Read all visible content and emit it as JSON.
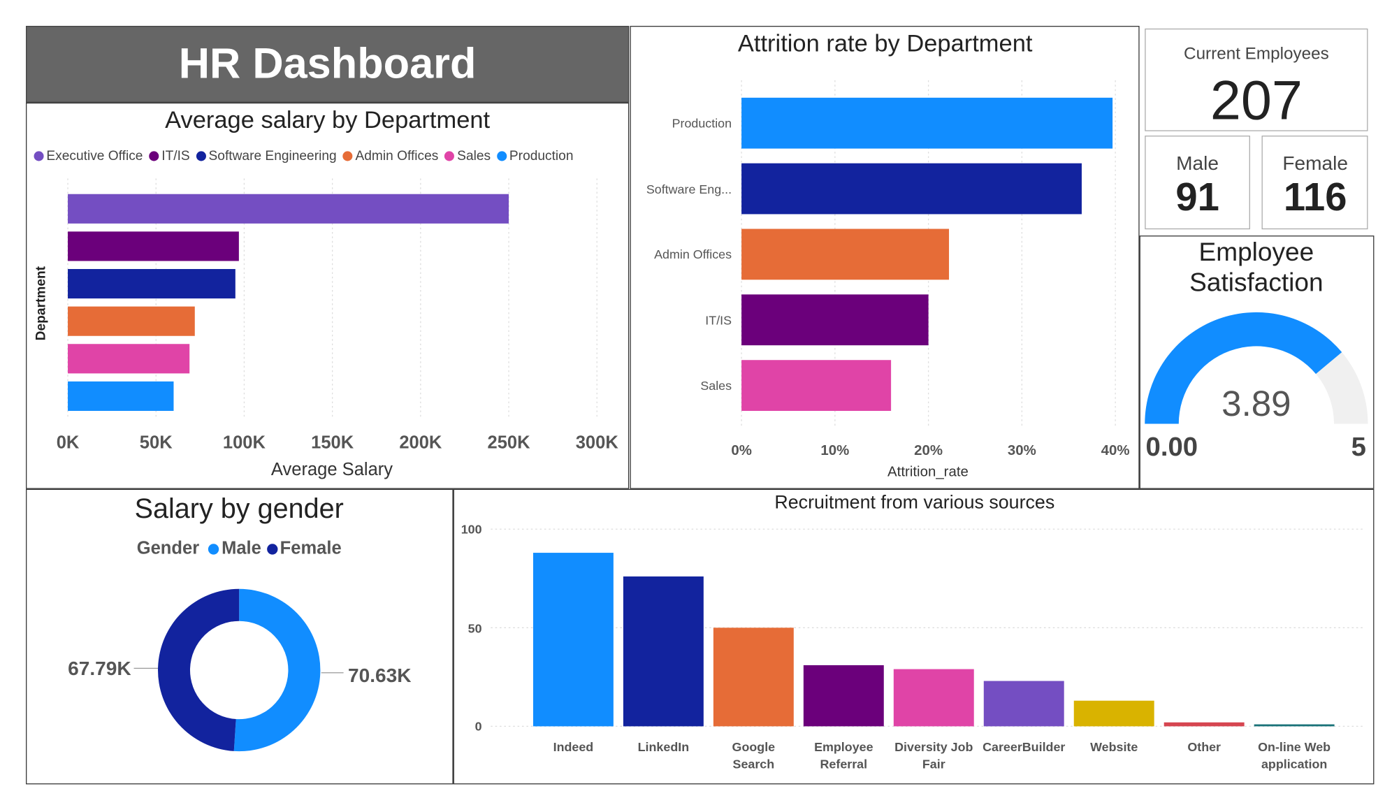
{
  "header": {
    "title": "HR Dashboard"
  },
  "cards": [
    {
      "label": "Current Employees",
      "value": 207
    },
    {
      "label": "Male",
      "value": 91
    },
    {
      "label": "Female",
      "value": 116
    }
  ],
  "chart_data": [
    {
      "type": "bar",
      "orientation": "horizontal",
      "title": "Average salary by Department",
      "x_label": "Average Salary",
      "y_label": "Department",
      "categories": [
        "Executive Office",
        "IT/IS",
        "Software Engineering",
        "Admin Offices",
        "Sales",
        "Production"
      ],
      "values": [
        250000,
        97000,
        95000,
        72000,
        69000,
        60000
      ],
      "colors": [
        "#744EC2",
        "#6B007B",
        "#12239E",
        "#E66C37",
        "#E044A7",
        "#118DFF"
      ],
      "legend": true,
      "xlim": [
        0,
        300000
      ],
      "xticks": [
        {
          "value": 0,
          "label": "0K"
        },
        {
          "value": 50000,
          "label": "50K"
        },
        {
          "value": 100000,
          "label": "100K"
        },
        {
          "value": 150000,
          "label": "150K"
        },
        {
          "value": 200000,
          "label": "200K"
        },
        {
          "value": 250000,
          "label": "250K"
        },
        {
          "value": 300000,
          "label": "300K"
        }
      ],
      "grid": true
    },
    {
      "type": "bar",
      "orientation": "horizontal",
      "title": "Attrition rate by Department",
      "x_label": "Attrition_rate",
      "categories": [
        "Production",
        "Software Eng...",
        "Admin Offices",
        "IT/IS",
        "Sales"
      ],
      "values": [
        39.7,
        36.4,
        22.2,
        20.0,
        16.0
      ],
      "colors": [
        "#118DFF",
        "#12239E",
        "#E66C37",
        "#6B007B",
        "#E044A7"
      ],
      "legend": false,
      "xlim": [
        0,
        40
      ],
      "xticks": [
        {
          "value": 0,
          "label": "0%"
        },
        {
          "value": 10,
          "label": "10%"
        },
        {
          "value": 20,
          "label": "20%"
        },
        {
          "value": 30,
          "label": "30%"
        },
        {
          "value": 40,
          "label": "40%"
        }
      ],
      "grid": true
    },
    {
      "type": "gauge",
      "title": "Employee Satisfaction",
      "value": 3.89,
      "min": {
        "value": 0,
        "label": "0.00"
      },
      "max": 5,
      "color": "#118DFF",
      "track_color": "#F0F0F0"
    },
    {
      "type": "donut",
      "title": "Salary by gender",
      "legend_title": "Gender",
      "categories": [
        "Male",
        "Female"
      ],
      "values": [
        70630,
        67790
      ],
      "value_labels": [
        "70.63K",
        "67.79K"
      ],
      "colors": [
        "#118DFF",
        "#12239E"
      ]
    },
    {
      "type": "bar",
      "orientation": "vertical",
      "title": "Recruitment from various sources",
      "categories": [
        "Indeed",
        "LinkedIn",
        "Google Search",
        "Employee Referral",
        "Diversity Job Fair",
        "CareerBuilder",
        "Website",
        "Other",
        "On-line Web application"
      ],
      "values": [
        88,
        76,
        50,
        31,
        29,
        23,
        13,
        2,
        1
      ],
      "colors": [
        "#118DFF",
        "#12239E",
        "#E66C37",
        "#6B007B",
        "#E044A7",
        "#744EC2",
        "#D9B300",
        "#D64550",
        "#197278"
      ],
      "ylim": [
        0,
        100
      ],
      "yticks": [
        0,
        50,
        100
      ],
      "grid": true
    }
  ]
}
